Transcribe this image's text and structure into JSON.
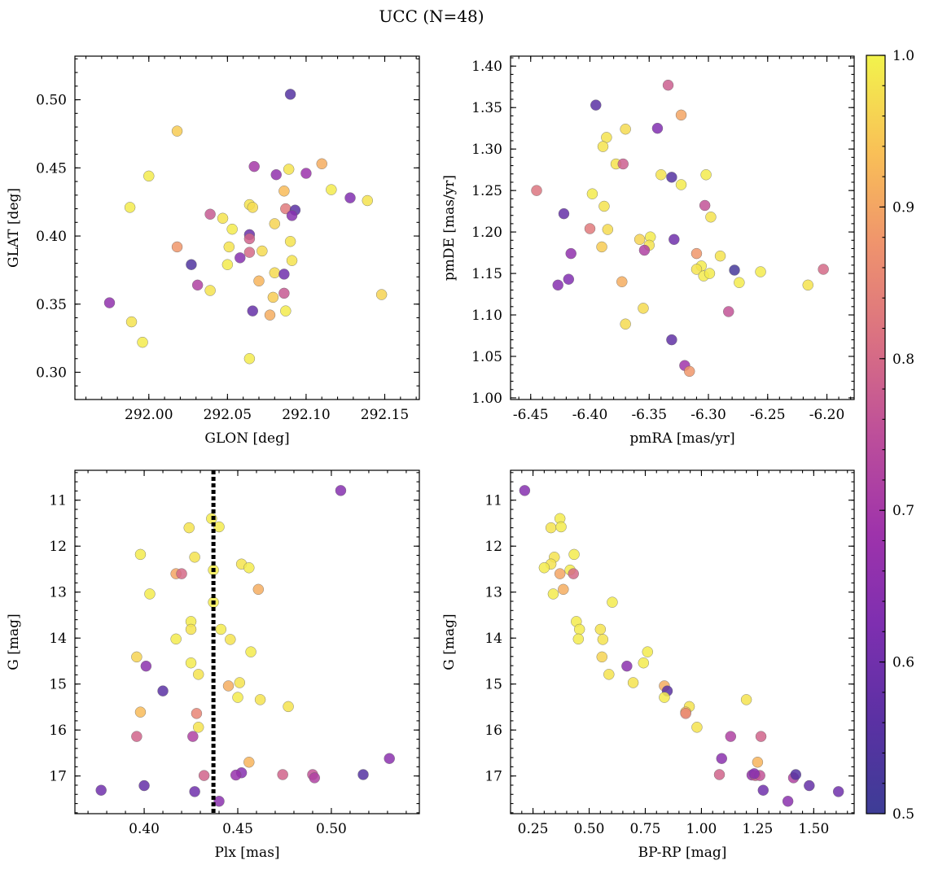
{
  "title": "UCC (N=48)",
  "colorbar": {
    "colormap": "plasma",
    "range": [
      0.5,
      1.0
    ],
    "tick_labels": [
      "1.0",
      "0.9",
      "0.8",
      "0.7",
      "0.6",
      "0.5"
    ],
    "tick_values": [
      1.0,
      0.9,
      0.8,
      0.7,
      0.6,
      0.5
    ]
  },
  "chart_data": [
    {
      "type": "scatter",
      "xlabel": "GLON [deg]",
      "ylabel": "GLAT [deg]",
      "xlim": [
        291.953,
        292.172
      ],
      "ylim": [
        0.28,
        0.532
      ],
      "xticks": [
        292.0,
        292.05,
        292.1,
        292.15
      ],
      "xtick_labels": [
        "292.00",
        "292.05",
        "292.10",
        "292.15"
      ],
      "yticks": [
        0.3,
        0.35,
        0.4,
        0.45,
        0.5
      ],
      "ytick_labels": [
        "0.30",
        "0.35",
        "0.40",
        "0.45",
        "0.50"
      ],
      "points": [
        {
          "x": 292.09,
          "y": 0.504,
          "c": 0.55
        },
        {
          "x": 292.018,
          "y": 0.477,
          "c": 0.95
        },
        {
          "x": 292.0,
          "y": 0.444,
          "c": 0.99
        },
        {
          "x": 292.067,
          "y": 0.451,
          "c": 0.7
        },
        {
          "x": 292.081,
          "y": 0.445,
          "c": 0.66
        },
        {
          "x": 292.089,
          "y": 0.449,
          "c": 0.98
        },
        {
          "x": 292.1,
          "y": 0.446,
          "c": 0.68
        },
        {
          "x": 292.11,
          "y": 0.453,
          "c": 0.91
        },
        {
          "x": 292.116,
          "y": 0.434,
          "c": 0.99
        },
        {
          "x": 292.086,
          "y": 0.433,
          "c": 0.93
        },
        {
          "x": 292.128,
          "y": 0.428,
          "c": 0.63
        },
        {
          "x": 292.139,
          "y": 0.426,
          "c": 0.98
        },
        {
          "x": 291.988,
          "y": 0.421,
          "c": 0.99
        },
        {
          "x": 292.039,
          "y": 0.416,
          "c": 0.77
        },
        {
          "x": 292.047,
          "y": 0.413,
          "c": 0.98
        },
        {
          "x": 292.064,
          "y": 0.423,
          "c": 0.98
        },
        {
          "x": 292.066,
          "y": 0.421,
          "c": 0.97
        },
        {
          "x": 292.087,
          "y": 0.42,
          "c": 0.83
        },
        {
          "x": 292.093,
          "y": 0.419,
          "c": 0.56
        },
        {
          "x": 292.091,
          "y": 0.415,
          "c": 0.64
        },
        {
          "x": 292.08,
          "y": 0.409,
          "c": 0.96
        },
        {
          "x": 292.064,
          "y": 0.401,
          "c": 0.59
        },
        {
          "x": 292.064,
          "y": 0.398,
          "c": 0.79
        },
        {
          "x": 292.018,
          "y": 0.392,
          "c": 0.88
        },
        {
          "x": 292.051,
          "y": 0.392,
          "c": 0.98
        },
        {
          "x": 292.09,
          "y": 0.396,
          "c": 0.98
        },
        {
          "x": 292.072,
          "y": 0.389,
          "c": 0.97
        },
        {
          "x": 292.064,
          "y": 0.388,
          "c": 0.8
        },
        {
          "x": 292.058,
          "y": 0.384,
          "c": 0.64
        },
        {
          "x": 292.05,
          "y": 0.379,
          "c": 0.99
        },
        {
          "x": 292.091,
          "y": 0.382,
          "c": 0.98
        },
        {
          "x": 292.027,
          "y": 0.379,
          "c": 0.54
        },
        {
          "x": 292.08,
          "y": 0.373,
          "c": 0.97
        },
        {
          "x": 292.086,
          "y": 0.372,
          "c": 0.6
        },
        {
          "x": 292.07,
          "y": 0.367,
          "c": 0.92
        },
        {
          "x": 292.031,
          "y": 0.364,
          "c": 0.72
        },
        {
          "x": 292.039,
          "y": 0.36,
          "c": 0.98
        },
        {
          "x": 292.086,
          "y": 0.358,
          "c": 0.77
        },
        {
          "x": 292.079,
          "y": 0.355,
          "c": 0.95
        },
        {
          "x": 291.975,
          "y": 0.351,
          "c": 0.66
        },
        {
          "x": 292.148,
          "y": 0.357,
          "c": 0.96
        },
        {
          "x": 292.066,
          "y": 0.345,
          "c": 0.58
        },
        {
          "x": 292.087,
          "y": 0.345,
          "c": 0.99
        },
        {
          "x": 292.077,
          "y": 0.342,
          "c": 0.91
        },
        {
          "x": 291.989,
          "y": 0.337,
          "c": 0.98
        },
        {
          "x": 291.996,
          "y": 0.322,
          "c": 0.99
        },
        {
          "x": 292.064,
          "y": 0.31,
          "c": 0.99
        },
        {
          "x": 292.053,
          "y": 0.405,
          "c": 0.99
        }
      ]
    },
    {
      "type": "scatter",
      "xlabel": "pmRA [mas/yr]",
      "ylabel": "pmDE [mas/yr]",
      "xlim": [
        -6.467,
        -6.177
      ],
      "ylim": [
        0.998,
        1.412
      ],
      "xticks": [
        -6.45,
        -6.4,
        -6.35,
        -6.3,
        -6.25,
        -6.2
      ],
      "xtick_labels": [
        "-6.45",
        "-6.40",
        "-6.35",
        "-6.30",
        "-6.25",
        "-6.20"
      ],
      "yticks": [
        1.0,
        1.05,
        1.1,
        1.15,
        1.2,
        1.25,
        1.3,
        1.35,
        1.4
      ],
      "ytick_labels": [
        "1.00",
        "1.05",
        "1.10",
        "1.15",
        "1.20",
        "1.25",
        "1.30",
        "1.35",
        "1.40"
      ],
      "points": [
        {
          "x": -6.334,
          "y": 1.377,
          "c": 0.78
        },
        {
          "x": -6.395,
          "y": 1.353,
          "c": 0.56
        },
        {
          "x": -6.323,
          "y": 1.341,
          "c": 0.9
        },
        {
          "x": -6.343,
          "y": 1.325,
          "c": 0.63
        },
        {
          "x": -6.37,
          "y": 1.324,
          "c": 0.97
        },
        {
          "x": -6.386,
          "y": 1.314,
          "c": 0.98
        },
        {
          "x": -6.389,
          "y": 1.303,
          "c": 0.98
        },
        {
          "x": -6.378,
          "y": 1.282,
          "c": 0.98
        },
        {
          "x": -6.372,
          "y": 1.282,
          "c": 0.78
        },
        {
          "x": -6.34,
          "y": 1.269,
          "c": 0.98
        },
        {
          "x": -6.302,
          "y": 1.269,
          "c": 0.99
        },
        {
          "x": -6.331,
          "y": 1.266,
          "c": 0.55
        },
        {
          "x": -6.323,
          "y": 1.257,
          "c": 0.99
        },
        {
          "x": -6.445,
          "y": 1.25,
          "c": 0.82
        },
        {
          "x": -6.398,
          "y": 1.246,
          "c": 0.99
        },
        {
          "x": -6.388,
          "y": 1.231,
          "c": 0.98
        },
        {
          "x": -6.303,
          "y": 1.232,
          "c": 0.76
        },
        {
          "x": -6.422,
          "y": 1.222,
          "c": 0.58
        },
        {
          "x": -6.298,
          "y": 1.218,
          "c": 0.98
        },
        {
          "x": -6.4,
          "y": 1.204,
          "c": 0.83
        },
        {
          "x": -6.385,
          "y": 1.203,
          "c": 0.97
        },
        {
          "x": -6.358,
          "y": 1.191,
          "c": 0.96
        },
        {
          "x": -6.349,
          "y": 1.194,
          "c": 0.99
        },
        {
          "x": -6.329,
          "y": 1.191,
          "c": 0.6
        },
        {
          "x": -6.39,
          "y": 1.182,
          "c": 0.95
        },
        {
          "x": -6.35,
          "y": 1.184,
          "c": 0.98
        },
        {
          "x": -6.354,
          "y": 1.178,
          "c": 0.72
        },
        {
          "x": -6.416,
          "y": 1.174,
          "c": 0.66
        },
        {
          "x": -6.31,
          "y": 1.174,
          "c": 0.88
        },
        {
          "x": -6.29,
          "y": 1.171,
          "c": 0.98
        },
        {
          "x": -6.306,
          "y": 1.159,
          "c": 0.99
        },
        {
          "x": -6.31,
          "y": 1.155,
          "c": 0.98
        },
        {
          "x": -6.278,
          "y": 1.154,
          "c": 0.52
        },
        {
          "x": -6.256,
          "y": 1.152,
          "c": 0.99
        },
        {
          "x": -6.203,
          "y": 1.155,
          "c": 0.8
        },
        {
          "x": -6.304,
          "y": 1.147,
          "c": 0.99
        },
        {
          "x": -6.299,
          "y": 1.15,
          "c": 0.99
        },
        {
          "x": -6.418,
          "y": 1.143,
          "c": 0.63
        },
        {
          "x": -6.373,
          "y": 1.14,
          "c": 0.91
        },
        {
          "x": -6.274,
          "y": 1.139,
          "c": 0.99
        },
        {
          "x": -6.427,
          "y": 1.136,
          "c": 0.64
        },
        {
          "x": -6.216,
          "y": 1.136,
          "c": 0.98
        },
        {
          "x": -6.355,
          "y": 1.108,
          "c": 0.97
        },
        {
          "x": -6.283,
          "y": 1.104,
          "c": 0.76
        },
        {
          "x": -6.37,
          "y": 1.089,
          "c": 0.97
        },
        {
          "x": -6.331,
          "y": 1.07,
          "c": 0.57
        },
        {
          "x": -6.32,
          "y": 1.039,
          "c": 0.69
        },
        {
          "x": -6.316,
          "y": 1.032,
          "c": 0.88
        }
      ]
    },
    {
      "type": "scatter",
      "xlabel": "Plx [mas]",
      "ylabel": "G [mag]",
      "xlim": [
        0.363,
        0.547
      ],
      "ylim": [
        17.82,
        10.35
      ],
      "xticks": [
        0.4,
        0.45,
        0.5
      ],
      "xtick_labels": [
        "0.40",
        "0.45",
        "0.50"
      ],
      "yticks": [
        11,
        12,
        13,
        14,
        15,
        16,
        17
      ],
      "ytick_labels": [
        "11",
        "12",
        "13",
        "14",
        "15",
        "16",
        "17"
      ],
      "vline": {
        "x": 0.437,
        "style": "dotted",
        "color": "#000000"
      },
      "points": [
        {
          "x": 0.505,
          "y": 10.79,
          "c": 0.64
        },
        {
          "x": 0.436,
          "y": 11.4,
          "c": 0.99
        },
        {
          "x": 0.424,
          "y": 11.6,
          "c": 0.98
        },
        {
          "x": 0.44,
          "y": 11.58,
          "c": 0.99
        },
        {
          "x": 0.398,
          "y": 12.18,
          "c": 0.99
        },
        {
          "x": 0.427,
          "y": 12.24,
          "c": 0.98
        },
        {
          "x": 0.452,
          "y": 12.39,
          "c": 0.98
        },
        {
          "x": 0.456,
          "y": 12.47,
          "c": 0.99
        },
        {
          "x": 0.437,
          "y": 12.52,
          "c": 0.99
        },
        {
          "x": 0.417,
          "y": 12.6,
          "c": 0.9
        },
        {
          "x": 0.42,
          "y": 12.6,
          "c": 0.8
        },
        {
          "x": 0.461,
          "y": 12.94,
          "c": 0.91
        },
        {
          "x": 0.403,
          "y": 13.04,
          "c": 0.99
        },
        {
          "x": 0.437,
          "y": 13.22,
          "c": 0.99
        },
        {
          "x": 0.425,
          "y": 13.64,
          "c": 0.99
        },
        {
          "x": 0.425,
          "y": 13.81,
          "c": 0.98
        },
        {
          "x": 0.441,
          "y": 13.81,
          "c": 0.99
        },
        {
          "x": 0.417,
          "y": 14.02,
          "c": 0.99
        },
        {
          "x": 0.446,
          "y": 14.03,
          "c": 0.98
        },
        {
          "x": 0.457,
          "y": 14.3,
          "c": 0.99
        },
        {
          "x": 0.396,
          "y": 14.41,
          "c": 0.96
        },
        {
          "x": 0.425,
          "y": 14.54,
          "c": 0.99
        },
        {
          "x": 0.401,
          "y": 14.61,
          "c": 0.65
        },
        {
          "x": 0.429,
          "y": 14.79,
          "c": 0.98
        },
        {
          "x": 0.451,
          "y": 14.97,
          "c": 0.98
        },
        {
          "x": 0.445,
          "y": 15.04,
          "c": 0.91
        },
        {
          "x": 0.41,
          "y": 15.15,
          "c": 0.56
        },
        {
          "x": 0.45,
          "y": 15.29,
          "c": 0.99
        },
        {
          "x": 0.462,
          "y": 15.34,
          "c": 0.98
        },
        {
          "x": 0.477,
          "y": 15.49,
          "c": 0.98
        },
        {
          "x": 0.398,
          "y": 15.61,
          "c": 0.93
        },
        {
          "x": 0.428,
          "y": 15.64,
          "c": 0.85
        },
        {
          "x": 0.429,
          "y": 15.94,
          "c": 0.98
        },
        {
          "x": 0.396,
          "y": 16.14,
          "c": 0.79
        },
        {
          "x": 0.426,
          "y": 16.14,
          "c": 0.72
        },
        {
          "x": 0.531,
          "y": 16.62,
          "c": 0.65
        },
        {
          "x": 0.456,
          "y": 16.7,
          "c": 0.92
        },
        {
          "x": 0.452,
          "y": 16.93,
          "c": 0.64
        },
        {
          "x": 0.449,
          "y": 16.98,
          "c": 0.67
        },
        {
          "x": 0.474,
          "y": 16.97,
          "c": 0.79
        },
        {
          "x": 0.49,
          "y": 16.97,
          "c": 0.76
        },
        {
          "x": 0.491,
          "y": 17.04,
          "c": 0.72
        },
        {
          "x": 0.432,
          "y": 16.99,
          "c": 0.79
        },
        {
          "x": 0.517,
          "y": 16.97,
          "c": 0.55
        },
        {
          "x": 0.4,
          "y": 17.21,
          "c": 0.58
        },
        {
          "x": 0.377,
          "y": 17.31,
          "c": 0.6
        },
        {
          "x": 0.427,
          "y": 17.34,
          "c": 0.6
        },
        {
          "x": 0.44,
          "y": 17.55,
          "c": 0.65
        }
      ]
    },
    {
      "type": "scatter",
      "xlabel": "BP-RP [mag]",
      "ylabel": "G [mag]",
      "xlim": [
        0.15,
        1.68
      ],
      "ylim": [
        17.82,
        10.35
      ],
      "xticks": [
        0.25,
        0.5,
        0.75,
        1.0,
        1.25,
        1.5
      ],
      "xtick_labels": [
        "0.25",
        "0.50",
        "0.75",
        "1.00",
        "1.25",
        "1.50"
      ],
      "yticks": [
        11,
        12,
        13,
        14,
        15,
        16,
        17
      ],
      "ytick_labels": [
        "11",
        "12",
        "13",
        "14",
        "15",
        "16",
        "17"
      ],
      "points": [
        {
          "x": 0.213,
          "y": 10.79,
          "c": 0.64
        },
        {
          "x": 0.37,
          "y": 11.4,
          "c": 0.99
        },
        {
          "x": 0.33,
          "y": 11.6,
          "c": 0.98
        },
        {
          "x": 0.375,
          "y": 11.58,
          "c": 0.99
        },
        {
          "x": 0.433,
          "y": 12.18,
          "c": 0.99
        },
        {
          "x": 0.345,
          "y": 12.24,
          "c": 0.98
        },
        {
          "x": 0.33,
          "y": 12.39,
          "c": 0.98
        },
        {
          "x": 0.3,
          "y": 12.47,
          "c": 0.99
        },
        {
          "x": 0.415,
          "y": 12.52,
          "c": 0.99
        },
        {
          "x": 0.37,
          "y": 12.6,
          "c": 0.9
        },
        {
          "x": 0.43,
          "y": 12.6,
          "c": 0.8
        },
        {
          "x": 0.385,
          "y": 12.94,
          "c": 0.91
        },
        {
          "x": 0.34,
          "y": 13.04,
          "c": 0.99
        },
        {
          "x": 0.603,
          "y": 13.22,
          "c": 0.99
        },
        {
          "x": 0.443,
          "y": 13.64,
          "c": 0.99
        },
        {
          "x": 0.55,
          "y": 13.81,
          "c": 0.98
        },
        {
          "x": 0.457,
          "y": 13.81,
          "c": 0.99
        },
        {
          "x": 0.452,
          "y": 14.02,
          "c": 0.99
        },
        {
          "x": 0.561,
          "y": 14.03,
          "c": 0.98
        },
        {
          "x": 0.76,
          "y": 14.3,
          "c": 0.99
        },
        {
          "x": 0.557,
          "y": 14.41,
          "c": 0.96
        },
        {
          "x": 0.742,
          "y": 14.54,
          "c": 0.99
        },
        {
          "x": 0.668,
          "y": 14.61,
          "c": 0.65
        },
        {
          "x": 0.588,
          "y": 14.79,
          "c": 0.98
        },
        {
          "x": 0.696,
          "y": 14.97,
          "c": 0.98
        },
        {
          "x": 0.835,
          "y": 15.04,
          "c": 0.91
        },
        {
          "x": 0.848,
          "y": 15.15,
          "c": 0.56
        },
        {
          "x": 0.835,
          "y": 15.29,
          "c": 0.99
        },
        {
          "x": 1.2,
          "y": 15.34,
          "c": 0.98
        },
        {
          "x": 0.946,
          "y": 15.49,
          "c": 0.98
        },
        {
          "x": 0.93,
          "y": 15.61,
          "c": 0.93
        },
        {
          "x": 0.93,
          "y": 15.64,
          "c": 0.85
        },
        {
          "x": 0.98,
          "y": 15.94,
          "c": 0.98
        },
        {
          "x": 1.13,
          "y": 16.14,
          "c": 0.72
        },
        {
          "x": 1.265,
          "y": 16.14,
          "c": 0.79
        },
        {
          "x": 1.09,
          "y": 16.62,
          "c": 0.65
        },
        {
          "x": 1.25,
          "y": 16.7,
          "c": 0.92
        },
        {
          "x": 1.08,
          "y": 16.97,
          "c": 0.79
        },
        {
          "x": 1.225,
          "y": 16.98,
          "c": 0.67
        },
        {
          "x": 1.24,
          "y": 16.99,
          "c": 0.79
        },
        {
          "x": 1.26,
          "y": 16.99,
          "c": 0.76
        },
        {
          "x": 1.41,
          "y": 17.04,
          "c": 0.72
        },
        {
          "x": 1.42,
          "y": 16.97,
          "c": 0.55
        },
        {
          "x": 1.48,
          "y": 17.21,
          "c": 0.58
        },
        {
          "x": 1.275,
          "y": 17.31,
          "c": 0.6
        },
        {
          "x": 1.61,
          "y": 17.34,
          "c": 0.6
        },
        {
          "x": 1.385,
          "y": 17.55,
          "c": 0.65
        },
        {
          "x": 1.235,
          "y": 16.95,
          "c": 0.64
        }
      ]
    }
  ]
}
